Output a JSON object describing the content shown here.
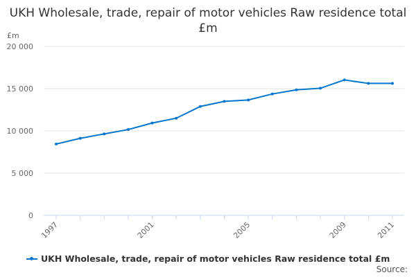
{
  "chart_data": {
    "type": "line",
    "title": "UKH Wholesale, trade, repair of motor vehicles Raw residence total £m",
    "ylabel": "£m",
    "xlabel": "",
    "ylim": [
      0,
      20000
    ],
    "yticks": [
      0,
      5000,
      10000,
      15000,
      20000
    ],
    "ytick_labels": [
      "0",
      "5 000",
      "10 000",
      "15 000",
      "20 000"
    ],
    "categories": [
      "1997",
      "1998",
      "1999",
      "2000",
      "2001",
      "2002",
      "2003",
      "2004",
      "2005",
      "2006",
      "2007",
      "2008",
      "2009",
      "2010",
      "2011"
    ],
    "xtick_labels_shown": [
      "1997",
      "2001",
      "2005",
      "2009",
      "2011"
    ],
    "grid": true,
    "legend_position": "bottom",
    "series": [
      {
        "name": "UKH Wholesale, trade, repair of motor vehicles Raw residence total £m",
        "color": "#0077cc",
        "values": [
          8440,
          9120,
          9640,
          10160,
          10930,
          11500,
          12890,
          13490,
          13660,
          14370,
          14860,
          15050,
          16030,
          15620,
          15620
        ]
      }
    ]
  },
  "source_label": "Source:"
}
